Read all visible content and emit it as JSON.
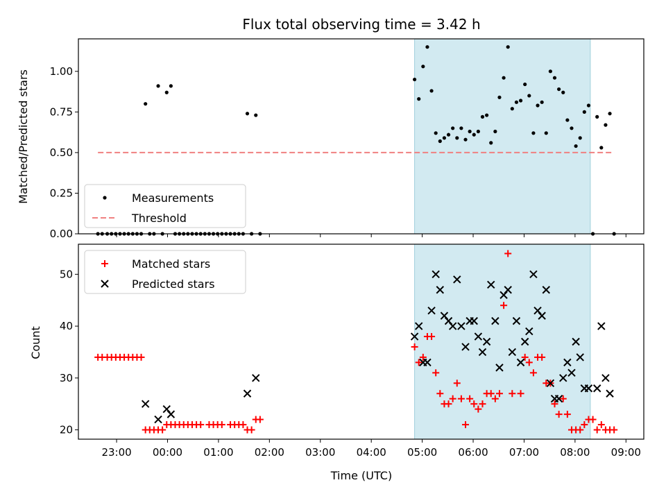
{
  "chart_data": [
    {
      "type": "scatter",
      "title": "Flux total observing time = 3.42 h",
      "ylabel": "Matched/Predicted stars",
      "xlabel": "",
      "x_unit": "hours UTC (continuing past 24 into next day)",
      "xlim": [
        22.25,
        9.35
      ],
      "ylim": [
        0,
        1.2
      ],
      "y_ticks": [
        "0.00",
        "0.25",
        "0.50",
        "0.75",
        "1.00"
      ],
      "y_tick_values": [
        0,
        0.25,
        0.5,
        0.75,
        1.0
      ],
      "highlight_span": {
        "x": [
          "04:51",
          "08:18"
        ],
        "color": "#add8e6"
      },
      "legend": {
        "location": "lower-left",
        "entries": [
          "Measurements",
          "Threshold"
        ]
      },
      "series": [
        {
          "name": "Measurements",
          "marker": "dot",
          "color": "#000000",
          "points": [
            [
              "22:38",
              0
            ],
            [
              "22:43",
              0
            ],
            [
              "22:49",
              0
            ],
            [
              "22:54",
              0
            ],
            [
              "22:59",
              0
            ],
            [
              "23:04",
              0
            ],
            [
              "23:09",
              0
            ],
            [
              "23:14",
              0
            ],
            [
              "23:19",
              0
            ],
            [
              "23:24",
              0
            ],
            [
              "23:29",
              0
            ],
            [
              "23:34",
              0.8
            ],
            [
              "23:39",
              0
            ],
            [
              "23:44",
              0
            ],
            [
              "23:49",
              0.91
            ],
            [
              "23:54",
              0
            ],
            [
              "23:59",
              0.87
            ],
            [
              "00:04",
              0.91
            ],
            [
              "00:09",
              0
            ],
            [
              "00:14",
              0
            ],
            [
              "00:19",
              0
            ],
            [
              "00:24",
              0
            ],
            [
              "00:29",
              0
            ],
            [
              "00:34",
              0
            ],
            [
              "00:39",
              0
            ],
            [
              "00:44",
              0
            ],
            [
              "00:49",
              0
            ],
            [
              "00:54",
              0
            ],
            [
              "00:59",
              0
            ],
            [
              "01:04",
              0
            ],
            [
              "01:09",
              0
            ],
            [
              "01:14",
              0
            ],
            [
              "01:19",
              0
            ],
            [
              "01:24",
              0
            ],
            [
              "01:29",
              0
            ],
            [
              "01:34",
              0.74
            ],
            [
              "01:39",
              0
            ],
            [
              "01:44",
              0.73
            ],
            [
              "01:49",
              0
            ],
            [
              "04:51",
              0.95
            ],
            [
              "04:56",
              0.83
            ],
            [
              "05:01",
              1.03
            ],
            [
              "05:06",
              1.15
            ],
            [
              "05:11",
              0.88
            ],
            [
              "05:16",
              0.62
            ],
            [
              "05:21",
              0.57
            ],
            [
              "05:26",
              0.59
            ],
            [
              "05:31",
              0.61
            ],
            [
              "05:36",
              0.65
            ],
            [
              "05:41",
              0.59
            ],
            [
              "05:46",
              0.65
            ],
            [
              "05:51",
              0.58
            ],
            [
              "05:56",
              0.63
            ],
            [
              "06:01",
              0.61
            ],
            [
              "06:06",
              0.63
            ],
            [
              "06:11",
              0.72
            ],
            [
              "06:16",
              0.73
            ],
            [
              "06:21",
              0.56
            ],
            [
              "06:26",
              0.63
            ],
            [
              "06:31",
              0.84
            ],
            [
              "06:36",
              0.96
            ],
            [
              "06:41",
              1.15
            ],
            [
              "06:46",
              0.77
            ],
            [
              "06:51",
              0.81
            ],
            [
              "06:56",
              0.82
            ],
            [
              "07:01",
              0.92
            ],
            [
              "07:06",
              0.85
            ],
            [
              "07:11",
              0.62
            ],
            [
              "07:16",
              0.79
            ],
            [
              "07:21",
              0.81
            ],
            [
              "07:26",
              0.62
            ],
            [
              "07:31",
              1.0
            ],
            [
              "07:36",
              0.96
            ],
            [
              "07:41",
              0.89
            ],
            [
              "07:46",
              0.87
            ],
            [
              "07:51",
              0.7
            ],
            [
              "07:56",
              0.65
            ],
            [
              "08:01",
              0.54
            ],
            [
              "08:06",
              0.59
            ],
            [
              "08:11",
              0.75
            ],
            [
              "08:16",
              0.79
            ],
            [
              "08:21",
              0
            ],
            [
              "08:26",
              0.72
            ],
            [
              "08:31",
              0.53
            ],
            [
              "08:36",
              0.67
            ],
            [
              "08:41",
              0.74
            ],
            [
              "08:46",
              0
            ]
          ]
        },
        {
          "name": "Threshold",
          "type": "line",
          "style": "dashed",
          "color": "#f08080",
          "y": 0.5,
          "x": [
            "22:38",
            "08:46"
          ]
        }
      ]
    },
    {
      "type": "scatter",
      "title": "",
      "ylabel": "Count",
      "xlabel": "Time (UTC)",
      "x_unit": "hours UTC (continuing past 24 into next day)",
      "xlim": [
        22.25,
        9.35
      ],
      "ylim": [
        18.2,
        55.8
      ],
      "y_ticks": [
        "20",
        "30",
        "40",
        "50"
      ],
      "y_tick_values": [
        20,
        30,
        40,
        50
      ],
      "x_ticks": [
        "23:00",
        "00:00",
        "01:00",
        "02:00",
        "03:00",
        "04:00",
        "05:00",
        "06:00",
        "07:00",
        "08:00",
        "09:00"
      ],
      "highlight_span": {
        "x": [
          "04:51",
          "08:18"
        ],
        "color": "#add8e6"
      },
      "legend": {
        "location": "upper-left",
        "entries": [
          "Matched stars",
          "Predicted stars"
        ]
      },
      "series": [
        {
          "name": "Matched stars",
          "marker": "plus",
          "color": "#ff0000",
          "points": [
            [
              "22:38",
              34
            ],
            [
              "22:43",
              34
            ],
            [
              "22:49",
              34
            ],
            [
              "22:54",
              34
            ],
            [
              "22:59",
              34
            ],
            [
              "23:04",
              34
            ],
            [
              "23:09",
              34
            ],
            [
              "23:14",
              34
            ],
            [
              "23:19",
              34
            ],
            [
              "23:24",
              34
            ],
            [
              "23:29",
              34
            ],
            [
              "23:34",
              20
            ],
            [
              "23:39",
              20
            ],
            [
              "23:44",
              20
            ],
            [
              "23:49",
              20
            ],
            [
              "23:54",
              20
            ],
            [
              "23:59",
              21
            ],
            [
              "00:04",
              21
            ],
            [
              "00:09",
              21
            ],
            [
              "00:14",
              21
            ],
            [
              "00:19",
              21
            ],
            [
              "00:24",
              21
            ],
            [
              "00:29",
              21
            ],
            [
              "00:34",
              21
            ],
            [
              "00:39",
              21
            ],
            [
              "00:49",
              21
            ],
            [
              "00:54",
              21
            ],
            [
              "00:59",
              21
            ],
            [
              "01:04",
              21
            ],
            [
              "01:14",
              21
            ],
            [
              "01:19",
              21
            ],
            [
              "01:24",
              21
            ],
            [
              "01:29",
              21
            ],
            [
              "01:34",
              20
            ],
            [
              "01:39",
              20
            ],
            [
              "01:44",
              22
            ],
            [
              "01:49",
              22
            ],
            [
              "04:51",
              36
            ],
            [
              "04:56",
              33
            ],
            [
              "05:01",
              34
            ],
            [
              "05:06",
              38
            ],
            [
              "05:11",
              38
            ],
            [
              "05:16",
              31
            ],
            [
              "05:21",
              27
            ],
            [
              "05:26",
              25
            ],
            [
              "05:31",
              25
            ],
            [
              "05:36",
              26
            ],
            [
              "05:41",
              29
            ],
            [
              "05:46",
              26
            ],
            [
              "05:51",
              21
            ],
            [
              "05:56",
              26
            ],
            [
              "06:01",
              25
            ],
            [
              "06:06",
              24
            ],
            [
              "06:11",
              25
            ],
            [
              "06:16",
              27
            ],
            [
              "06:21",
              27
            ],
            [
              "06:26",
              26
            ],
            [
              "06:31",
              27
            ],
            [
              "06:36",
              44
            ],
            [
              "06:41",
              54
            ],
            [
              "06:46",
              27
            ],
            [
              "06:56",
              27
            ],
            [
              "07:01",
              34
            ],
            [
              "07:06",
              33
            ],
            [
              "07:11",
              31
            ],
            [
              "07:16",
              34
            ],
            [
              "07:21",
              34
            ],
            [
              "07:26",
              29
            ],
            [
              "07:31",
              29
            ],
            [
              "07:36",
              25
            ],
            [
              "07:41",
              23
            ],
            [
              "07:46",
              26
            ],
            [
              "07:51",
              23
            ],
            [
              "07:56",
              20
            ],
            [
              "08:01",
              20
            ],
            [
              "08:06",
              20
            ],
            [
              "08:11",
              21
            ],
            [
              "08:16",
              22
            ],
            [
              "08:21",
              22
            ],
            [
              "08:26",
              20
            ],
            [
              "08:31",
              21
            ],
            [
              "08:36",
              20
            ],
            [
              "08:41",
              20
            ],
            [
              "08:46",
              20
            ]
          ]
        },
        {
          "name": "Predicted stars",
          "marker": "x",
          "color": "#000000",
          "points": [
            [
              "23:34",
              25
            ],
            [
              "23:49",
              22
            ],
            [
              "23:59",
              24
            ],
            [
              "00:04",
              23
            ],
            [
              "01:34",
              27
            ],
            [
              "01:44",
              30
            ],
            [
              "04:51",
              38
            ],
            [
              "04:56",
              40
            ],
            [
              "05:01",
              33
            ],
            [
              "05:06",
              33
            ],
            [
              "05:11",
              43
            ],
            [
              "05:16",
              50
            ],
            [
              "05:21",
              47
            ],
            [
              "05:26",
              42
            ],
            [
              "05:31",
              41
            ],
            [
              "05:36",
              40
            ],
            [
              "05:41",
              49
            ],
            [
              "05:46",
              40
            ],
            [
              "05:51",
              36
            ],
            [
              "05:56",
              41
            ],
            [
              "06:01",
              41
            ],
            [
              "06:06",
              38
            ],
            [
              "06:11",
              35
            ],
            [
              "06:16",
              37
            ],
            [
              "06:21",
              48
            ],
            [
              "06:26",
              41
            ],
            [
              "06:31",
              32
            ],
            [
              "06:36",
              46
            ],
            [
              "06:41",
              47
            ],
            [
              "06:46",
              35
            ],
            [
              "06:51",
              41
            ],
            [
              "06:56",
              33
            ],
            [
              "07:01",
              37
            ],
            [
              "07:06",
              39
            ],
            [
              "07:11",
              50
            ],
            [
              "07:16",
              43
            ],
            [
              "07:21",
              42
            ],
            [
              "07:26",
              47
            ],
            [
              "07:31",
              29
            ],
            [
              "07:36",
              26
            ],
            [
              "07:41",
              26
            ],
            [
              "07:46",
              30
            ],
            [
              "07:51",
              33
            ],
            [
              "07:56",
              31
            ],
            [
              "08:01",
              37
            ],
            [
              "08:06",
              34
            ],
            [
              "08:11",
              28
            ],
            [
              "08:16",
              28
            ],
            [
              "08:26",
              28
            ],
            [
              "08:31",
              40
            ],
            [
              "08:36",
              30
            ],
            [
              "08:41",
              27
            ]
          ]
        }
      ]
    }
  ]
}
